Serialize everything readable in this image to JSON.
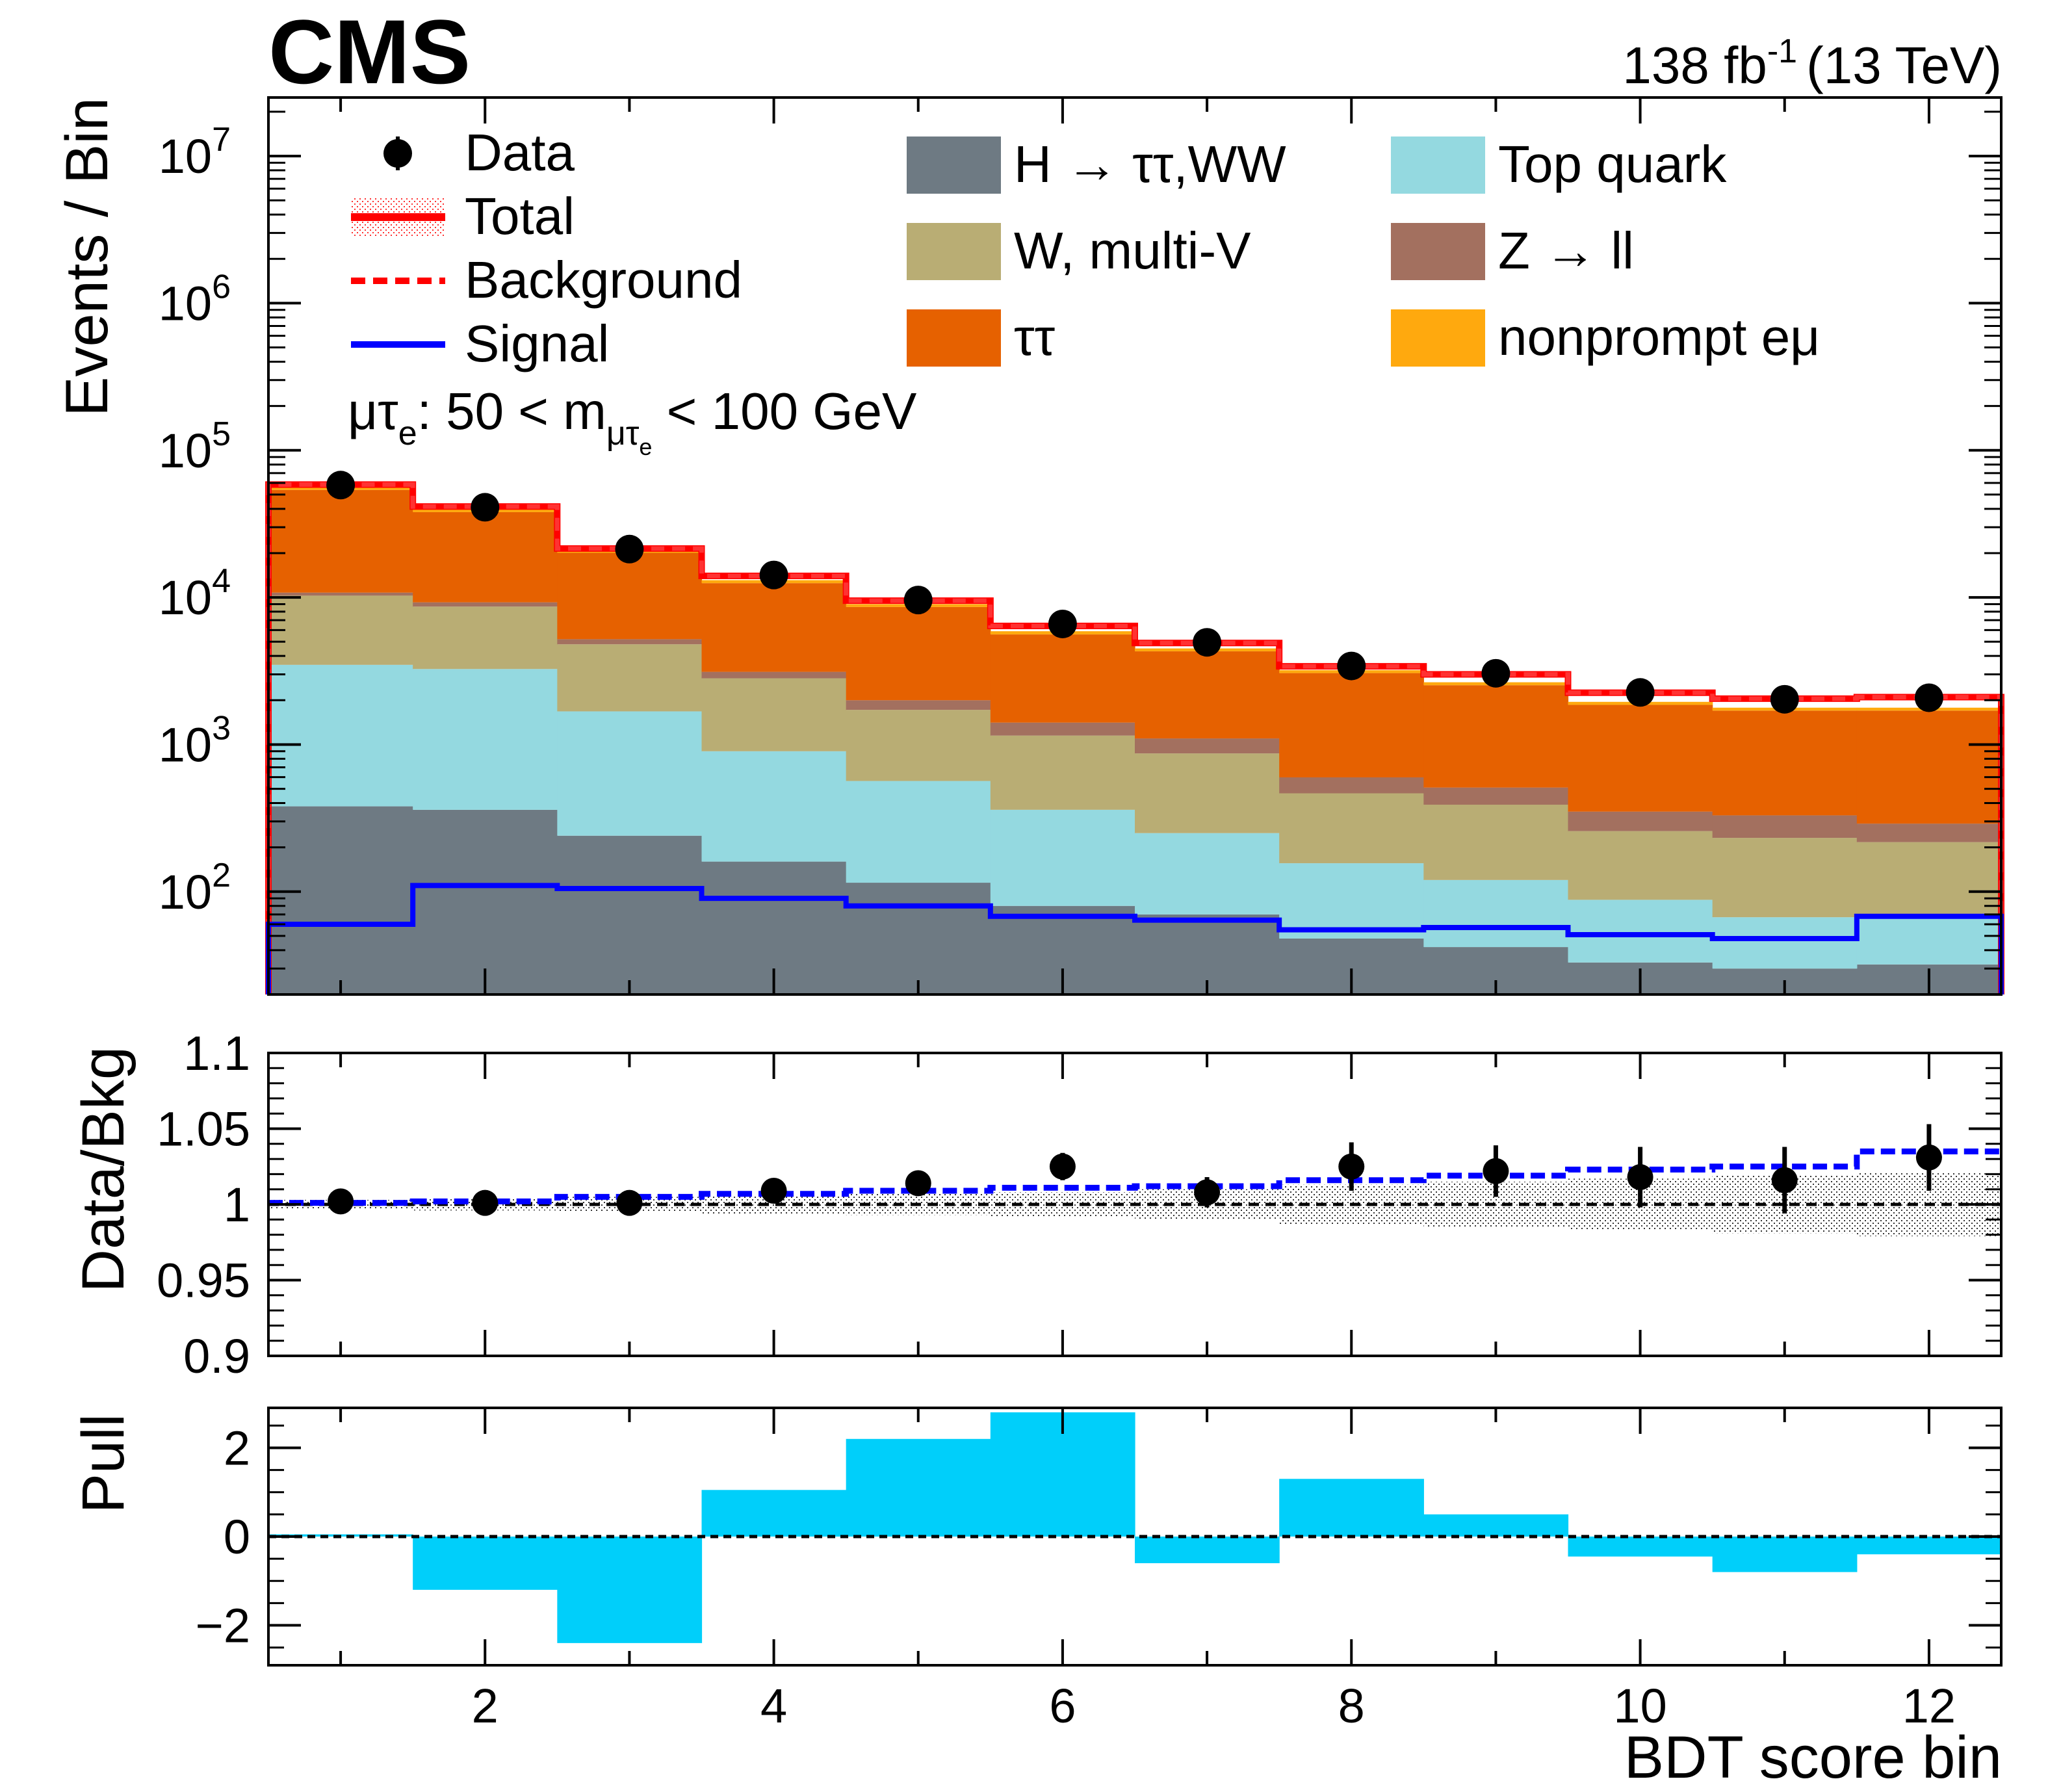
{
  "experiment": "CMS",
  "lumi_label": "138 fb",
  "lumi_sup": "-1",
  "energy_label": "(13 TeV)",
  "category": {
    "prefix": "μτ",
    "prefix_sub": "e",
    "mid": ": 50 < m",
    "m_sub": "μτ",
    "m_subsub": "e",
    "suffix": " < 100 GeV"
  },
  "colors": {
    "H_tautau_WW": "#6e7a83",
    "top_quark": "#94d9e0",
    "W_multiV": "#b9ad74",
    "Z_ll": "#a3705f",
    "tautau": "#e66100",
    "nonprompt_emu": "#ffa90e",
    "total": "#ff0000",
    "signal": "#0000ff",
    "pull": "#00cffa"
  },
  "chart_data": [
    {
      "type": "bar",
      "panel": "main",
      "stacked": true,
      "ylabel": "Events / Bin",
      "log_y": true,
      "ylim": [
        20,
        25000000
      ],
      "yticks": [
        {
          "value": 100,
          "base": "10",
          "exp": "2"
        },
        {
          "value": 1000,
          "base": "10",
          "exp": "3"
        },
        {
          "value": 10000,
          "base": "10",
          "exp": "4"
        },
        {
          "value": 100000,
          "base": "10",
          "exp": "5"
        },
        {
          "value": 1000000,
          "base": "10",
          "exp": "6"
        },
        {
          "value": 10000000,
          "base": "10",
          "exp": "7"
        }
      ],
      "xlim": [
        0.5,
        12.5
      ],
      "bins": [
        1,
        2,
        3,
        4,
        5,
        6,
        7,
        8,
        9,
        10,
        11,
        12
      ],
      "legend": {
        "data": "Data",
        "total": "Total",
        "background": "Background",
        "signal": "Signal"
      },
      "stack": [
        {
          "key": "H_tautau_WW",
          "name": "H → ττ,WW",
          "values": [
            380,
            360,
            240,
            160,
            115,
            80,
            70,
            48,
            42,
            33,
            30,
            32
          ]
        },
        {
          "key": "top_quark",
          "name": "Top quark",
          "values": [
            3100,
            2900,
            1440,
            740,
            450,
            280,
            180,
            108,
            78,
            55,
            37,
            35
          ]
        },
        {
          "key": "W_multiV",
          "name": "W, multi-V",
          "values": [
            6800,
            5400,
            3120,
            1920,
            1155,
            790,
            620,
            310,
            270,
            170,
            165,
            150
          ]
        },
        {
          "key": "Z_ll",
          "name": "Z → ll",
          "values": [
            500,
            600,
            400,
            300,
            280,
            260,
            230,
            132,
            120,
            92,
            98,
            73
          ]
        },
        {
          "key": "tautau",
          "name": "ττ",
          "values": [
            43000,
            28700,
            14900,
            9380,
            6600,
            4190,
            3200,
            2460,
            2020,
            1510,
            1370,
            1410
          ]
        },
        {
          "key": "nonprompt_emu",
          "name": "nonprompt eμ",
          "values": [
            3000,
            2000,
            900,
            600,
            400,
            290,
            200,
            142,
            120,
            90,
            80,
            80
          ]
        }
      ],
      "total": [
        58500,
        41500,
        21500,
        14000,
        9500,
        6400,
        4900,
        3400,
        3000,
        2250,
        2050,
        2100
      ],
      "signal": [
        60,
        110,
        105,
        90,
        80,
        68,
        64,
        55,
        57,
        51,
        48,
        68
      ],
      "data": [
        58000,
        41000,
        21300,
        14200,
        9600,
        6600,
        4950,
        3420,
        3050,
        2260,
        2030,
        2080
      ]
    },
    {
      "type": "scatter",
      "panel": "ratio",
      "ylabel": "Data/Bkg",
      "ylim": [
        0.9,
        1.1
      ],
      "yticks": [
        "0.9",
        "0.95",
        "1",
        "1.05",
        "1.1"
      ],
      "bins": [
        1,
        2,
        3,
        4,
        5,
        6,
        7,
        8,
        9,
        10,
        11,
        12
      ],
      "values": [
        1.002,
        1.001,
        1.001,
        1.009,
        1.014,
        1.025,
        1.008,
        1.025,
        1.022,
        1.018,
        1.016,
        1.031
      ],
      "errors": [
        0.003,
        0.003,
        0.004,
        0.005,
        0.007,
        0.009,
        0.01,
        0.016,
        0.017,
        0.02,
        0.022,
        0.022
      ],
      "signal_plus_bkg_over_bkg": [
        1.001,
        1.002,
        1.005,
        1.007,
        1.009,
        1.011,
        1.012,
        1.016,
        1.019,
        1.023,
        1.025,
        1.035
      ],
      "uncertainty_band": [
        0.003,
        0.004,
        0.005,
        0.006,
        0.007,
        0.008,
        0.01,
        0.013,
        0.015,
        0.017,
        0.019,
        0.021
      ]
    },
    {
      "type": "bar",
      "panel": "pull",
      "ylabel": "Pull",
      "xlabel": "BDT score bin",
      "ylim": [
        -2.9,
        2.9
      ],
      "yticks": [
        "−2",
        "0",
        "2"
      ],
      "xticks": [
        "2",
        "4",
        "6",
        "8",
        "10",
        "12"
      ],
      "bins": [
        1,
        2,
        3,
        4,
        5,
        6,
        7,
        8,
        9,
        10,
        11,
        12
      ],
      "values": [
        0.05,
        -1.2,
        -2.4,
        1.05,
        2.2,
        2.8,
        -0.6,
        1.3,
        0.5,
        -0.45,
        -0.8,
        -0.4
      ]
    }
  ]
}
